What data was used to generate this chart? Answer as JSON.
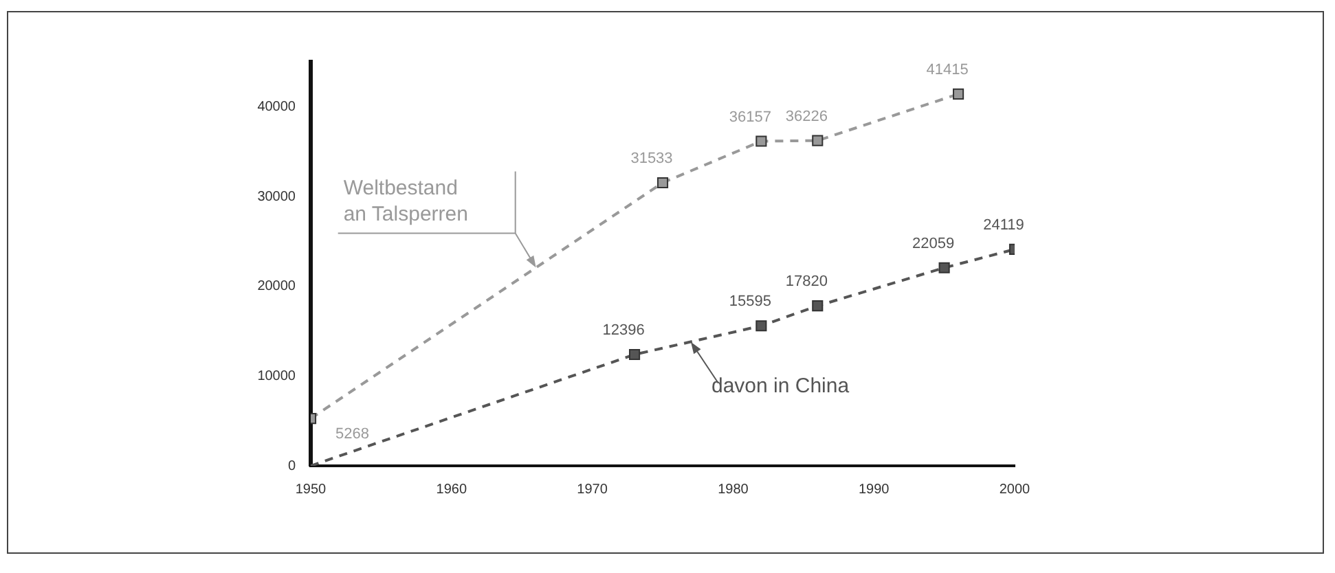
{
  "chart_data": {
    "type": "line",
    "xlim": [
      1950,
      2000
    ],
    "xticks": [
      1950,
      1960,
      1970,
      1980,
      1990,
      2000
    ],
    "ylim": [
      0,
      45000
    ],
    "yticks": [
      0,
      10000,
      20000,
      30000,
      40000
    ],
    "grid": false,
    "legend": false,
    "marker": "square",
    "line_style": "dashed",
    "series": [
      {
        "color": "#999999",
        "x": [
          1950,
          1975,
          1982,
          1986,
          1996
        ],
        "values": [
          5268,
          31533,
          36157,
          36226,
          41415
        ],
        "value_labels": [
          "5268",
          "31533",
          "36157",
          "36226",
          "41415"
        ]
      },
      {
        "color": "#555555",
        "x": [
          1950,
          1973,
          1982,
          1986,
          1995,
          2000
        ],
        "values": [
          0,
          12396,
          15595,
          17820,
          22059,
          24119
        ],
        "value_labels": [
          null,
          "12396",
          "15595",
          "17820",
          "22059",
          "24119"
        ]
      }
    ],
    "annotations": [
      "Weltbestand an Talsperren",
      {
        "text": "davon in China",
        "x": 1977,
        "y": 13800
      }
    ]
  }
}
